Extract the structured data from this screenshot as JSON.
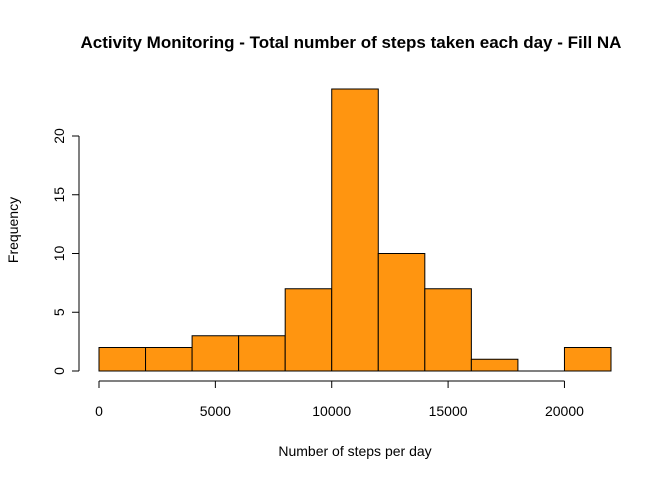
{
  "chart_data": {
    "type": "bar",
    "title": "Activity Monitoring - Total number of steps taken each day - Fill NA",
    "xlabel": "Number of steps per day",
    "ylabel": "Frequency",
    "bins": [
      {
        "from": 0,
        "to": 2000,
        "count": 2
      },
      {
        "from": 2000,
        "to": 4000,
        "count": 2
      },
      {
        "from": 4000,
        "to": 6000,
        "count": 3
      },
      {
        "from": 6000,
        "to": 8000,
        "count": 3
      },
      {
        "from": 8000,
        "to": 10000,
        "count": 7
      },
      {
        "from": 10000,
        "to": 12000,
        "count": 24
      },
      {
        "from": 12000,
        "to": 14000,
        "count": 10
      },
      {
        "from": 14000,
        "to": 16000,
        "count": 7
      },
      {
        "from": 16000,
        "to": 18000,
        "count": 1
      },
      {
        "from": 18000,
        "to": 20000,
        "count": 0
      },
      {
        "from": 20000,
        "to": 22000,
        "count": 2
      }
    ],
    "x_ticks": [
      0,
      5000,
      10000,
      15000,
      20000
    ],
    "y_ticks": [
      0,
      5,
      10,
      15,
      20
    ],
    "xlim": [
      0,
      22000
    ],
    "ylim": [
      0,
      24
    ],
    "bar_color": "#FF9510",
    "border_color": "#000000",
    "grid": false,
    "legend": "none"
  }
}
